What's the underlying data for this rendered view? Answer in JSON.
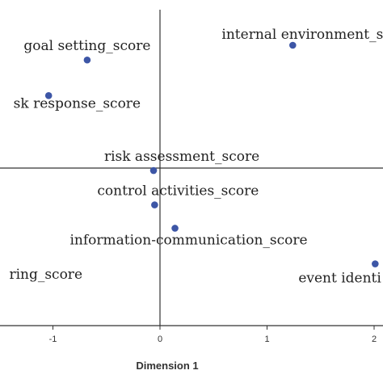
{
  "chart_data": {
    "type": "scatter",
    "title": "",
    "xlabel": "Dimension 1",
    "ylabel": "",
    "xlim": [
      -1.5,
      2.05
    ],
    "ylim": [
      -1.45,
      1.2
    ],
    "grid": false,
    "x_ticks": [
      {
        "value": -1,
        "label": "-1"
      },
      {
        "value": 0,
        "label": "0"
      },
      {
        "value": 1,
        "label": "1"
      },
      {
        "value": 2,
        "label": "2"
      }
    ],
    "reference_lines": {
      "x": 0,
      "y": 0
    },
    "marker_color": "#3d56a6",
    "points": [
      {
        "label": "internal environment_s",
        "x": 1.24,
        "y": 1.0,
        "label_anchor": "end-right"
      },
      {
        "label": "goal setting_score",
        "x": -0.68,
        "y": 0.88,
        "label_anchor": "above"
      },
      {
        "label": "sk response_score",
        "x": -1.04,
        "y": 0.59,
        "label_anchor": "left-cut"
      },
      {
        "label": "risk assessment_score",
        "x": -0.06,
        "y": -0.02,
        "label_anchor": "above"
      },
      {
        "label": "control activities_score",
        "x": -0.05,
        "y": -0.3,
        "label_anchor": "above"
      },
      {
        "label": "information-communication_score",
        "x": 0.14,
        "y": -0.49,
        "label_anchor": "below"
      },
      {
        "label": "ring_score",
        "x": -1.62,
        "y": -0.85,
        "label_anchor": "left-cut"
      },
      {
        "label": "event identi",
        "x": 2.01,
        "y": -0.78,
        "label_anchor": "below-left"
      }
    ]
  }
}
